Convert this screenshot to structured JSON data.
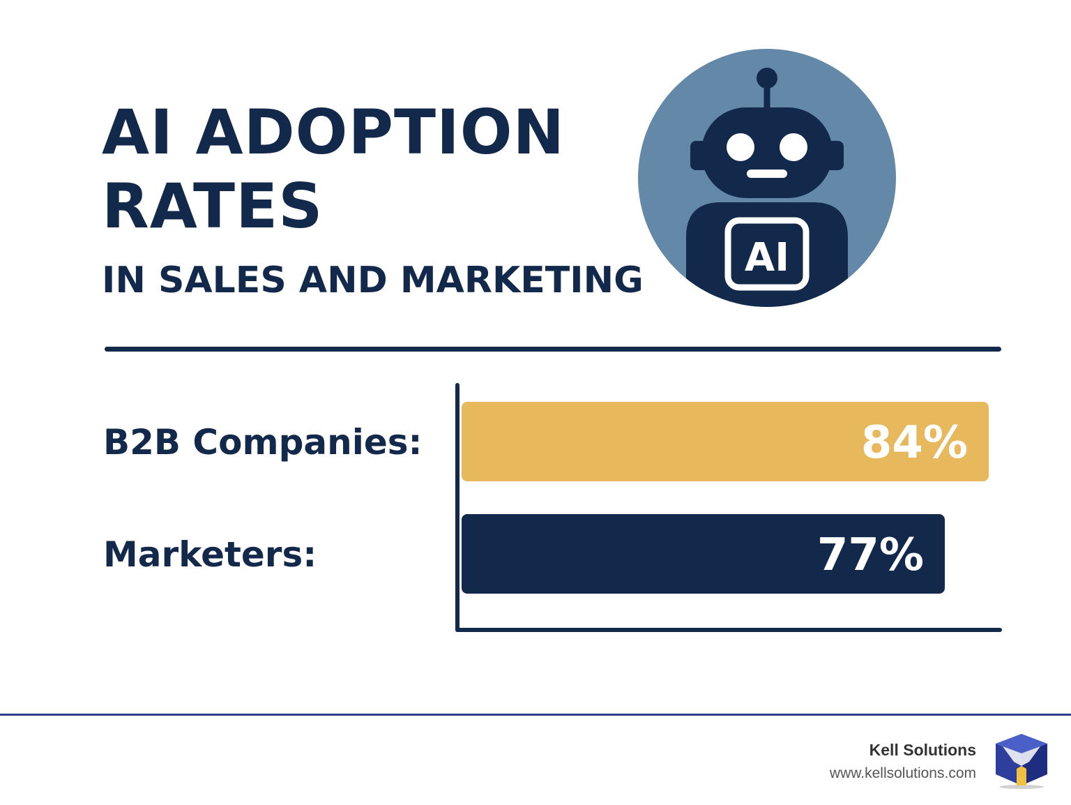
{
  "header": {
    "title_line_1": "AI ADOPTION",
    "title_line_2": "RATES",
    "subtitle": "IN SALES AND MARKETING"
  },
  "illustration": {
    "icon": "robot-icon",
    "badge_text": "AI",
    "circle_color": "#6489a8",
    "robot_color": "#13294b"
  },
  "chart_data": {
    "type": "bar",
    "orientation": "horizontal",
    "categories": [
      "B2B Companies:",
      "Marketers:"
    ],
    "values": [
      84,
      77
    ],
    "value_labels": [
      "84%",
      "77%"
    ],
    "colors": [
      "#e7b85c",
      "#13294b"
    ],
    "xlim": [
      0,
      100
    ],
    "title": "",
    "xlabel": "",
    "ylabel": "",
    "grid": false,
    "legend": "none"
  },
  "footer": {
    "brand_name": "Kell Solutions",
    "brand_url": "www.kellsolutions.com",
    "logo_icon": "cube-logo-icon",
    "accent_color": "#2d3e8c"
  }
}
